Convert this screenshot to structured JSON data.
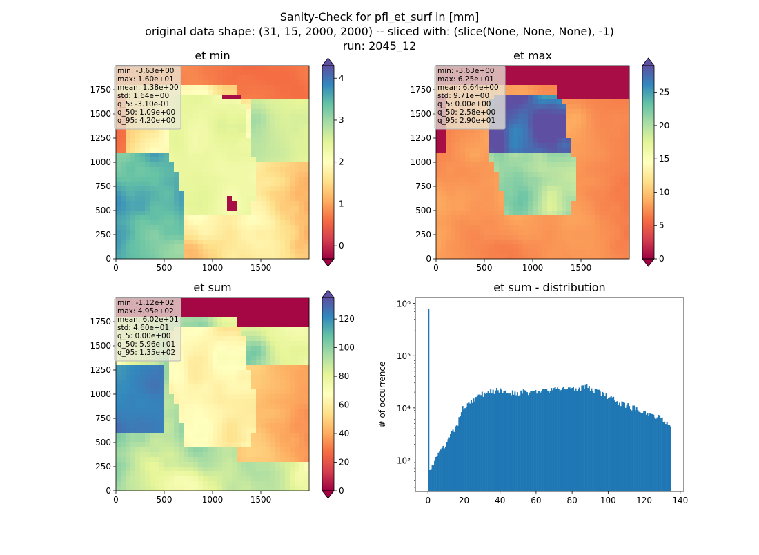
{
  "suptitle": {
    "line1": "Sanity-Check for pfl_et_surf in [mm]",
    "line2": "original data shape: (31, 15, 2000, 2000) -- sliced with: (slice(None, None, None), -1)",
    "line3": "run: 2045_12"
  },
  "colors": {
    "spectral": [
      "#9e0142",
      "#d53e4f",
      "#f46d43",
      "#fdae61",
      "#fee08b",
      "#ffffbf",
      "#e6f598",
      "#abdda4",
      "#66c2a5",
      "#3288bd",
      "#5e4fa2"
    ],
    "hist": "#1f77b4",
    "statsbox": "#e8e8d8"
  },
  "chart_data": [
    {
      "type": "heatmap",
      "title": "et min",
      "xticks": [
        "0",
        "500",
        "1000",
        "1500"
      ],
      "yticks": [
        "0",
        "250",
        "500",
        "750",
        "1000",
        "1250",
        "1500",
        "1750"
      ],
      "xlim": [
        0,
        2000
      ],
      "ylim": [
        0,
        2000
      ],
      "colorbar": {
        "ticks": [
          "0",
          "1",
          "2",
          "3",
          "4"
        ],
        "tick_values": [
          0,
          1,
          2,
          3,
          4
        ],
        "vmin": -0.31,
        "vmax": 4.3,
        "extend": "both"
      },
      "stats": [
        "min: -3.63e+00",
        "max: 1.60e+01",
        "mean: 1.38e+00",
        "std: 1.64e+00",
        "q_5: -3.10e-01",
        "q_50: 1.09e+00",
        "q_95: 4.20e+00"
      ],
      "field": "min"
    },
    {
      "type": "heatmap",
      "title": "et max",
      "xticks": [
        "0",
        "500",
        "1000",
        "1500"
      ],
      "yticks": [
        "0",
        "250",
        "500",
        "750",
        "1000",
        "1250",
        "1500",
        "1750"
      ],
      "xlim": [
        0,
        2000
      ],
      "ylim": [
        0,
        2000
      ],
      "colorbar": {
        "ticks": [
          "0",
          "5",
          "10",
          "15",
          "20",
          "25"
        ],
        "tick_values": [
          0,
          5,
          10,
          15,
          20,
          25
        ],
        "vmin": 0,
        "vmax": 29,
        "extend": "both"
      },
      "stats": [
        "min: -3.63e+00",
        "max: 6.25e+01",
        "mean: 6.64e+00",
        "std: 9.71e+00",
        "q_5: 0.00e+00",
        "q_50: 2.58e+00",
        "q_95: 2.90e+01"
      ],
      "field": "max"
    },
    {
      "type": "heatmap",
      "title": "et sum",
      "xticks": [
        "0",
        "500",
        "1000",
        "1500"
      ],
      "yticks": [
        "0",
        "250",
        "500",
        "750",
        "1000",
        "1250",
        "1500",
        "1750"
      ],
      "xlim": [
        0,
        2000
      ],
      "ylim": [
        0,
        2000
      ],
      "colorbar": {
        "ticks": [
          "0",
          "20",
          "40",
          "60",
          "80",
          "100",
          "120"
        ],
        "tick_values": [
          0,
          20,
          40,
          60,
          80,
          100,
          120
        ],
        "vmin": 0,
        "vmax": 135,
        "extend": "both"
      },
      "stats": [
        "min: -1.12e+02",
        "max: 4.95e+02",
        "mean: 6.02e+01",
        "std: 4.60e+01",
        "q_5: 0.00e+00",
        "q_50: 5.96e+01",
        "q_95: 1.35e+02"
      ],
      "field": "sum"
    },
    {
      "type": "bar",
      "title": "et sum - distribution",
      "ylabel": "# of occurrence",
      "yscale": "log",
      "xlim": [
        -7,
        142
      ],
      "ylim": [
        250,
        1300000
      ],
      "xticks": [
        "0",
        "20",
        "40",
        "60",
        "80",
        "100",
        "120",
        "140"
      ],
      "xtick_values": [
        0,
        20,
        40,
        60,
        80,
        100,
        120,
        140
      ],
      "yticks": [
        "10³",
        "10⁴",
        "10⁵",
        "10⁶"
      ],
      "ytick_values": [
        1000,
        10000,
        100000,
        1000000
      ],
      "bin_range": [
        0,
        135
      ],
      "bin_count": 200,
      "profile": [
        [
          0.0,
          800000
        ],
        [
          0.68,
          700
        ],
        [
          2.0,
          720
        ],
        [
          3.4,
          900
        ],
        [
          6.0,
          1300
        ],
        [
          10.0,
          2000
        ],
        [
          14.0,
          3500
        ],
        [
          17.0,
          5500
        ],
        [
          19.0,
          9500
        ],
        [
          22.0,
          12500
        ],
        [
          26.0,
          15000
        ],
        [
          30.0,
          18000
        ],
        [
          34.0,
          21500
        ],
        [
          40.0,
          21000
        ],
        [
          50.0,
          19500
        ],
        [
          60.0,
          20500
        ],
        [
          70.0,
          22000
        ],
        [
          80.0,
          24500
        ],
        [
          88.0,
          25000
        ],
        [
          95.0,
          20000
        ],
        [
          100.0,
          16000
        ],
        [
          108.0,
          12000
        ],
        [
          116.0,
          9500
        ],
        [
          125.0,
          7500
        ],
        [
          130.0,
          6000
        ],
        [
          135.0,
          5000
        ]
      ]
    }
  ]
}
